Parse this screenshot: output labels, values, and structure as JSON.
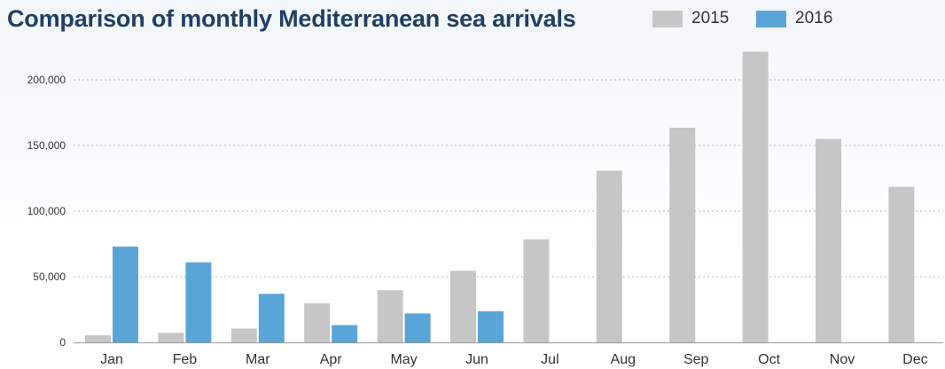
{
  "chart_data": {
    "type": "bar",
    "title": "Comparison of monthly Mediterranean sea arrivals",
    "categories": [
      "Jan",
      "Feb",
      "Mar",
      "Apr",
      "May",
      "Jun",
      "Jul",
      "Aug",
      "Sep",
      "Oct",
      "Nov",
      "Dec"
    ],
    "series": [
      {
        "name": "2015",
        "color": "#c6c6c6",
        "values": [
          5500,
          7300,
          10500,
          29800,
          39800,
          54600,
          78500,
          130800,
          163500,
          221500,
          155000,
          118500
        ]
      },
      {
        "name": "2016",
        "color": "#5aa5d8",
        "values": [
          73000,
          61000,
          37000,
          13200,
          22000,
          23700,
          null,
          null,
          null,
          null,
          null,
          null
        ]
      }
    ],
    "yticks": [
      "0",
      "50,000",
      "100,000",
      "150,000",
      "200,000"
    ],
    "ytick_values": [
      0,
      50000,
      100000,
      150000,
      200000
    ],
    "ylim": [
      0,
      225000
    ],
    "grid": true,
    "legend_position": "top-right",
    "xlabel": "",
    "ylabel": ""
  }
}
